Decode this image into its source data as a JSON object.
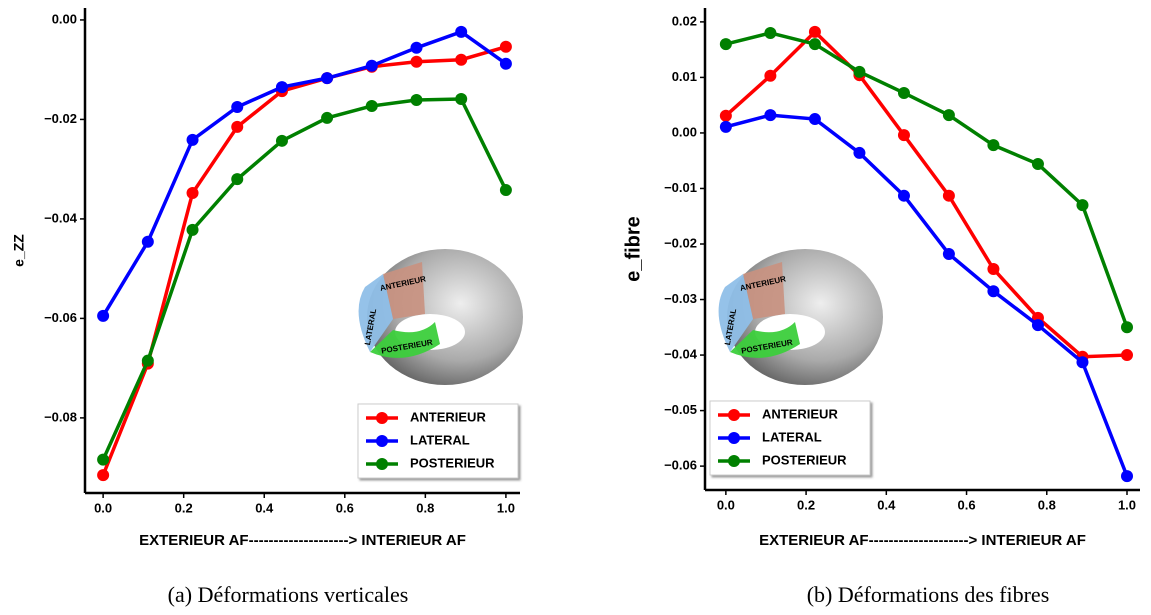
{
  "chart_data": [
    {
      "type": "line",
      "caption": "(a) Déformations verticales",
      "xlabel": "EXTERIEUR AF--------------------> INTERIEUR AF",
      "ylabel": "e_ZZ",
      "inset_labels": [
        "ANTERIEUR",
        "LATERAL",
        "POSTERIEUR"
      ],
      "x": [
        0,
        0.111,
        0.222,
        0.333,
        0.444,
        0.556,
        0.667,
        0.778,
        0.889,
        1
      ],
      "xlim": [
        -0.045,
        1.035
      ],
      "ylim": [
        -0.0951,
        0.0024
      ],
      "xticks": [
        {
          "value": 0,
          "label": "0.0"
        },
        {
          "value": 0.2,
          "label": "0.2"
        },
        {
          "value": 0.4,
          "label": "0.4"
        },
        {
          "value": 0.6,
          "label": "0.6"
        },
        {
          "value": 0.8,
          "label": "0.8"
        },
        {
          "value": 1,
          "label": "1.0"
        }
      ],
      "yticks": [
        {
          "value": -0.08,
          "label": "−0.08"
        },
        {
          "value": -0.06,
          "label": "−0.06"
        },
        {
          "value": -0.04,
          "label": "−0.04"
        },
        {
          "value": -0.02,
          "label": "−0.02"
        },
        {
          "value": 0,
          "label": "0.00"
        }
      ],
      "legend": "lower right",
      "series": [
        {
          "name": "ANTERIEUR",
          "color": "#ff0000",
          "values": [
            -0.0915,
            -0.0691,
            -0.0348,
            -0.0215,
            -0.0143,
            -0.0117,
            -0.0094,
            -0.0084,
            -0.008,
            -0.0054
          ]
        },
        {
          "name": "LATERAL",
          "color": "#0000ff",
          "values": [
            -0.0595,
            -0.0446,
            -0.0241,
            -0.0175,
            -0.0135,
            -0.0117,
            -0.0092,
            -0.0056,
            -0.0024,
            -0.0088
          ]
        },
        {
          "name": "POSTERIEUR",
          "color": "#008000",
          "values": [
            -0.0884,
            -0.0685,
            -0.0422,
            -0.032,
            -0.0243,
            -0.0197,
            -0.0173,
            -0.0161,
            -0.0159,
            -0.0342
          ]
        }
      ]
    },
    {
      "type": "line",
      "caption": "(b) Déformations des fibres",
      "xlabel": "EXTERIEUR AF--------------------> INTERIEUR AF",
      "ylabel": "e_fibre",
      "inset_labels": [
        "ANTERIEUR",
        "LATERAL",
        "POSTERIEUR"
      ],
      "x": [
        0,
        0.111,
        0.222,
        0.333,
        0.444,
        0.556,
        0.667,
        0.778,
        0.889,
        1
      ],
      "xlim": [
        -0.052,
        1.0324
      ],
      "ylim": [
        -0.0643,
        0.0225
      ],
      "xticks": [
        {
          "value": 0,
          "label": "0.0"
        },
        {
          "value": 0.2,
          "label": "0.2"
        },
        {
          "value": 0.4,
          "label": "0.4"
        },
        {
          "value": 0.6,
          "label": "0.6"
        },
        {
          "value": 0.8,
          "label": "0.8"
        },
        {
          "value": 1,
          "label": "1.0"
        }
      ],
      "yticks": [
        {
          "value": -0.06,
          "label": "−0.06"
        },
        {
          "value": -0.05,
          "label": "−0.05"
        },
        {
          "value": -0.04,
          "label": "−0.04"
        },
        {
          "value": -0.03,
          "label": "−0.03"
        },
        {
          "value": -0.02,
          "label": "−0.02"
        },
        {
          "value": -0.01,
          "label": "−0.01"
        },
        {
          "value": 0,
          "label": "0.00"
        },
        {
          "value": 0.01,
          "label": "0.01"
        },
        {
          "value": 0.02,
          "label": "0.02"
        }
      ],
      "legend": "lower left",
      "series": [
        {
          "name": "ANTERIEUR",
          "color": "#ff0000",
          "values": [
            0.0031,
            0.0103,
            0.0182,
            0.0104,
            -0.0004,
            -0.0113,
            -0.0245,
            -0.0333,
            -0.0403,
            -0.04
          ]
        },
        {
          "name": "LATERAL",
          "color": "#0000ff",
          "values": [
            0.0011,
            0.0032,
            0.0025,
            -0.0036,
            -0.0113,
            -0.0218,
            -0.0285,
            -0.0346,
            -0.0413,
            -0.0618
          ]
        },
        {
          "name": "POSTERIEUR",
          "color": "#008000",
          "values": [
            0.016,
            0.018,
            0.016,
            0.011,
            0.0072,
            0.0032,
            -0.0022,
            -0.0056,
            -0.013,
            -0.035
          ]
        }
      ]
    }
  ]
}
